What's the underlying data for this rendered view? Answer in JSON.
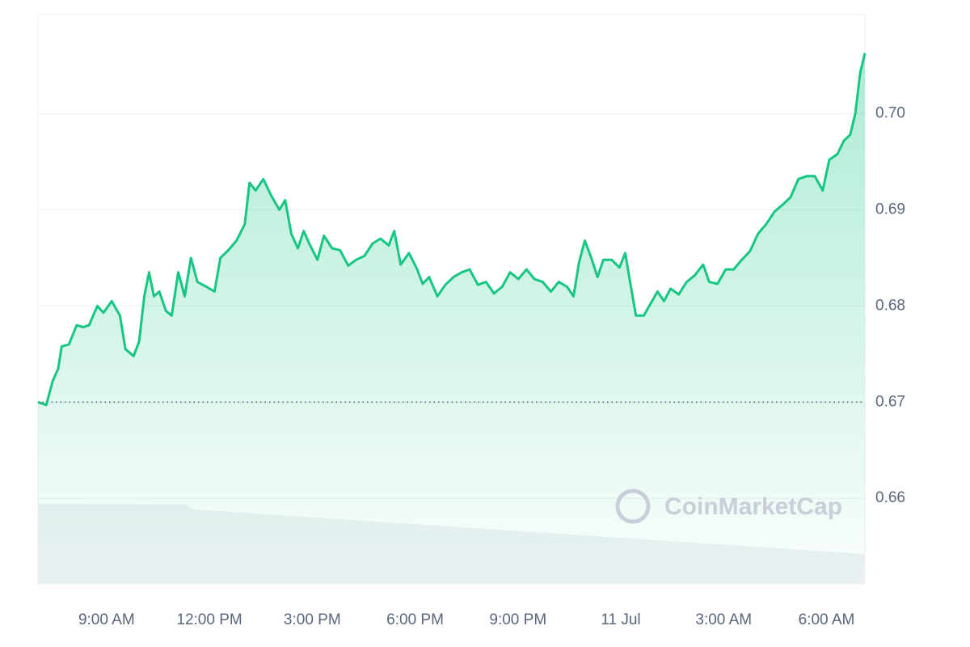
{
  "chart_data": {
    "type": "line",
    "watermark": "CoinMarketCap",
    "x": [
      7.0,
      7.24,
      7.43,
      7.59,
      7.69,
      7.9,
      8.13,
      8.32,
      8.49,
      8.73,
      8.91,
      9.15,
      9.39,
      9.55,
      9.79,
      9.95,
      10.1,
      10.24,
      10.38,
      10.54,
      10.73,
      10.9,
      11.09,
      11.28,
      11.46,
      11.65,
      11.91,
      12.15,
      12.32,
      12.55,
      12.79,
      13.03,
      13.17,
      13.35,
      13.57,
      13.8,
      14.04,
      14.21,
      14.39,
      14.58,
      14.75,
      14.91,
      15.15,
      15.34,
      15.58,
      15.81,
      16.05,
      16.28,
      16.52,
      16.76,
      16.99,
      17.23,
      17.39,
      17.58,
      17.82,
      18.06,
      18.22,
      18.41,
      18.65,
      18.88,
      19.12,
      19.36,
      19.59,
      19.83,
      20.07,
      20.3,
      20.54,
      20.77,
      21.01,
      21.25,
      21.48,
      21.72,
      21.96,
      22.19,
      22.43,
      22.62,
      22.78,
      22.95,
      23.14,
      23.32,
      23.49,
      23.73,
      23.96,
      24.13,
      24.27,
      24.44,
      24.67,
      24.91,
      25.07,
      25.26,
      25.45,
      25.69,
      25.92,
      26.16,
      26.4,
      26.58,
      26.82,
      27.06,
      27.29,
      27.53,
      27.77,
      28.0,
      28.24,
      28.48,
      28.71,
      28.95,
      29.18,
      29.42,
      29.66,
      29.89,
      30.08,
      30.32,
      30.51,
      30.69,
      30.84,
      30.98,
      31.12
    ],
    "series": [
      {
        "color": "#16c784",
        "values": [
          0.67,
          0.6697,
          0.6722,
          0.6735,
          0.6758,
          0.676,
          0.678,
          0.6778,
          0.678,
          0.68,
          0.6793,
          0.6805,
          0.679,
          0.6755,
          0.6748,
          0.6763,
          0.681,
          0.6835,
          0.681,
          0.6815,
          0.6795,
          0.679,
          0.6835,
          0.681,
          0.685,
          0.6825,
          0.682,
          0.6815,
          0.685,
          0.6858,
          0.6868,
          0.6885,
          0.6928,
          0.692,
          0.6932,
          0.6915,
          0.69,
          0.691,
          0.6875,
          0.686,
          0.6878,
          0.6865,
          0.6848,
          0.6873,
          0.686,
          0.6858,
          0.6842,
          0.6848,
          0.6852,
          0.6865,
          0.687,
          0.6863,
          0.6878,
          0.6843,
          0.6855,
          0.6838,
          0.6823,
          0.683,
          0.681,
          0.6822,
          0.683,
          0.6835,
          0.6838,
          0.6822,
          0.6825,
          0.6813,
          0.682,
          0.6835,
          0.6828,
          0.6838,
          0.6828,
          0.6825,
          0.6815,
          0.6825,
          0.682,
          0.681,
          0.6845,
          0.6868,
          0.685,
          0.683,
          0.6848,
          0.6848,
          0.684,
          0.6855,
          0.6825,
          0.679,
          0.679,
          0.6805,
          0.6815,
          0.6805,
          0.6818,
          0.6812,
          0.6825,
          0.6832,
          0.6843,
          0.6825,
          0.6823,
          0.6838,
          0.6838,
          0.6848,
          0.6857,
          0.6875,
          0.6885,
          0.6898,
          0.6905,
          0.6913,
          0.6932,
          0.6935,
          0.6935,
          0.692,
          0.6952,
          0.6958,
          0.6972,
          0.6978,
          0.7,
          0.7042,
          0.7063
        ]
      }
    ],
    "xlim": [
      7,
      31.12
    ],
    "xticks": [
      {
        "value": 9,
        "label": "9:00 AM"
      },
      {
        "value": 12,
        "label": "12:00 PM"
      },
      {
        "value": 15,
        "label": "3:00 PM"
      },
      {
        "value": 18,
        "label": "6:00 PM"
      },
      {
        "value": 21,
        "label": "9:00 PM"
      },
      {
        "value": 24,
        "label": "11 Jul"
      },
      {
        "value": 27,
        "label": "3:00 AM"
      },
      {
        "value": 30,
        "label": "6:00 AM"
      }
    ],
    "ylim": [
      0.6511,
      0.7103
    ],
    "yticks": [
      0.66,
      0.67,
      0.68,
      0.69,
      {
        "value": 0.7,
        "label": "0.70"
      }
    ],
    "reference_line": 0.67,
    "grid": true
  }
}
